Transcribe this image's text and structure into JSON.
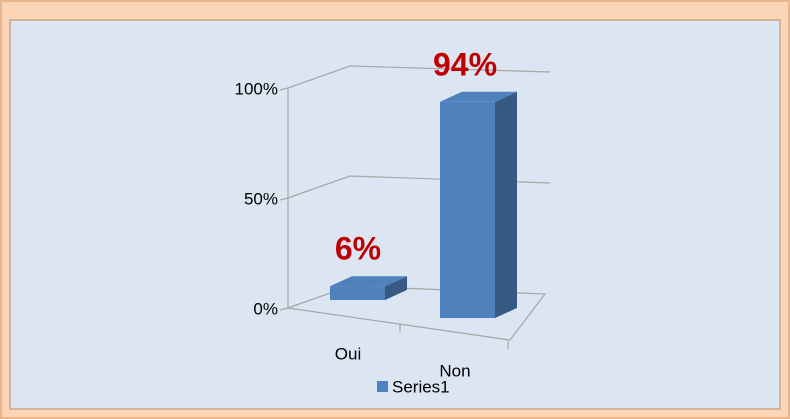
{
  "chart_data": {
    "type": "bar3d",
    "categories": [
      "Oui",
      "Non"
    ],
    "series": [
      {
        "name": "Series1",
        "color": "#4f81bd",
        "values": [
          6,
          94
        ],
        "value_labels": [
          "6%",
          "94%"
        ]
      }
    ],
    "ylim": [
      0,
      100
    ],
    "yticks": [
      {
        "value": 0,
        "label": "0%"
      },
      {
        "value": 50,
        "label": "50%"
      },
      {
        "value": 100,
        "label": "100%"
      }
    ],
    "grid": true,
    "legend": "bottom",
    "value_label_color": "#c00000"
  }
}
